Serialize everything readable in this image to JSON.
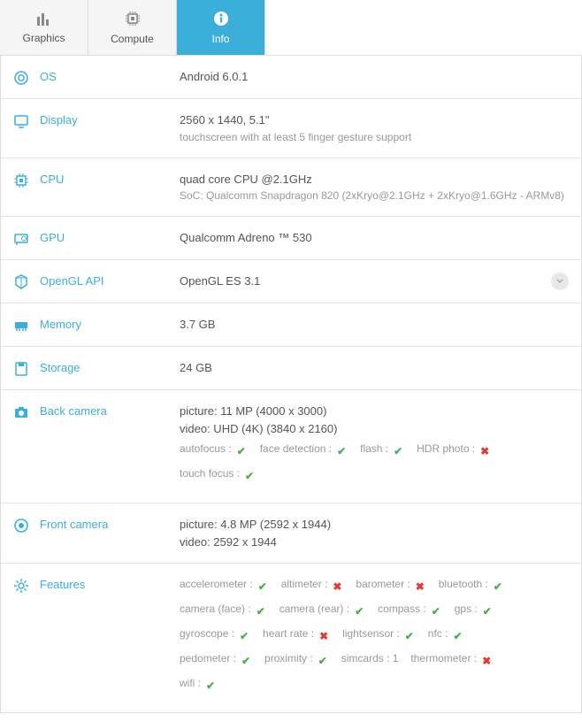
{
  "colors": {
    "accent": "#3bafda",
    "ok": "#4caf50",
    "no": "#e53935",
    "muted": "#999",
    "text": "#555",
    "border": "#e5e5e5"
  },
  "tabs": [
    {
      "id": "graphics",
      "label": "Graphics",
      "active": false
    },
    {
      "id": "compute",
      "label": "Compute",
      "active": false
    },
    {
      "id": "info",
      "label": "Info",
      "active": true
    }
  ],
  "rows": {
    "os": {
      "label": "OS",
      "value": "Android 6.0.1"
    },
    "display": {
      "label": "Display",
      "value": "2560 x 1440, 5.1\"",
      "sub": "touchscreen with at least 5 finger gesture support"
    },
    "cpu": {
      "label": "CPU",
      "value": "quad core CPU @2.1GHz",
      "sub": "SoC: Qualcomm Snapdragon 820 (2xKryo@2.1GHz + 2xKryo@1.6GHz - ARMv8)"
    },
    "gpu": {
      "label": "GPU",
      "value": "Qualcomm Adreno ™ 530"
    },
    "opengl": {
      "label": "OpenGL API",
      "value": "OpenGL ES 3.1"
    },
    "memory": {
      "label": "Memory",
      "value": "3.7 GB"
    },
    "storage": {
      "label": "Storage",
      "value": "24 GB"
    },
    "backcam": {
      "label": "Back camera",
      "picture": "picture: 11 MP (4000 x 3000)",
      "video": "video: UHD (4K) (3840 x 2160)"
    },
    "frontcam": {
      "label": "Front camera",
      "picture": "picture: 4.8 MP (2592 x 1944)",
      "video": "video: 2592 x 1944"
    },
    "features": {
      "label": "Features"
    }
  },
  "backcam_feats": [
    {
      "name": "autofocus :",
      "ok": true
    },
    {
      "name": "face detection :",
      "ok": true
    },
    {
      "name": "flash :",
      "ok": true
    },
    {
      "name": "HDR photo :",
      "ok": false
    },
    {
      "name": "touch focus :",
      "ok": true
    }
  ],
  "features_list": [
    {
      "name": "accelerometer :",
      "ok": true
    },
    {
      "name": "altimeter :",
      "ok": false
    },
    {
      "name": "barometer :",
      "ok": false
    },
    {
      "name": "bluetooth :",
      "ok": true
    },
    {
      "name": "camera (face) :",
      "ok": true
    },
    {
      "name": "camera (rear) :",
      "ok": true
    },
    {
      "name": "compass :",
      "ok": true
    },
    {
      "name": "gps :",
      "ok": true
    },
    {
      "name": "gyroscope :",
      "ok": true
    },
    {
      "name": "heart rate :",
      "ok": false
    },
    {
      "name": "lightsensor :",
      "ok": true
    },
    {
      "name": "nfc :",
      "ok": true
    },
    {
      "name": "pedometer :",
      "ok": true
    },
    {
      "name": "proximity :",
      "ok": true
    },
    {
      "name": "simcards : 1",
      "ok": null
    },
    {
      "name": "thermometer :",
      "ok": false
    },
    {
      "name": "wifi :",
      "ok": true
    }
  ]
}
